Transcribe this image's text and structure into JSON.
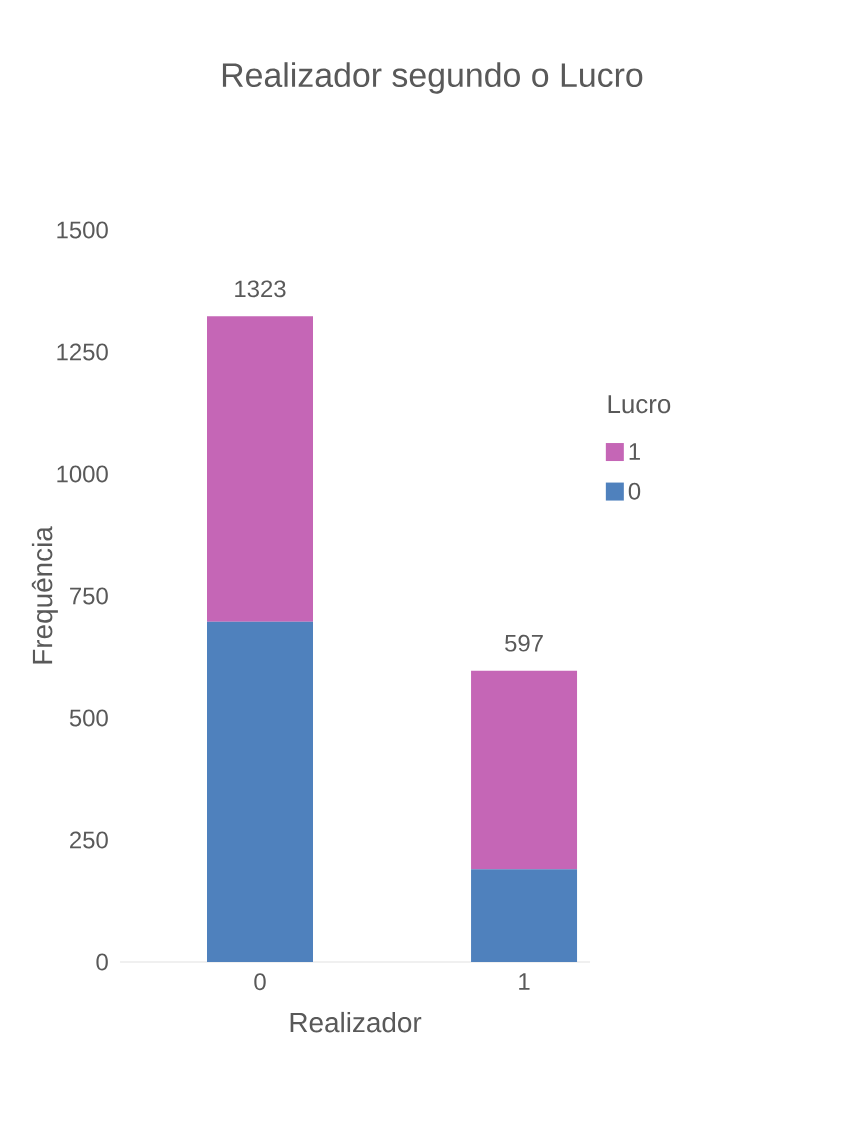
{
  "chart_data": {
    "type": "bar",
    "title": "Realizador segundo o Lucro",
    "xlabel": "Realizador",
    "ylabel": "Frequência",
    "legend_title": "Lucro",
    "categories": [
      "0",
      "1"
    ],
    "series": [
      {
        "name": "0",
        "color": "#4f81bd",
        "values": [
          697,
          190
        ]
      },
      {
        "name": "1",
        "color": "#c566b6",
        "values": [
          626,
          407
        ]
      }
    ],
    "stacked": true,
    "totals": [
      "1323",
      "597"
    ],
    "ylim": [
      0,
      1500
    ],
    "yticks": [
      0,
      250,
      500,
      750,
      1000,
      1250,
      1500
    ],
    "grid": false,
    "legend": "right"
  }
}
